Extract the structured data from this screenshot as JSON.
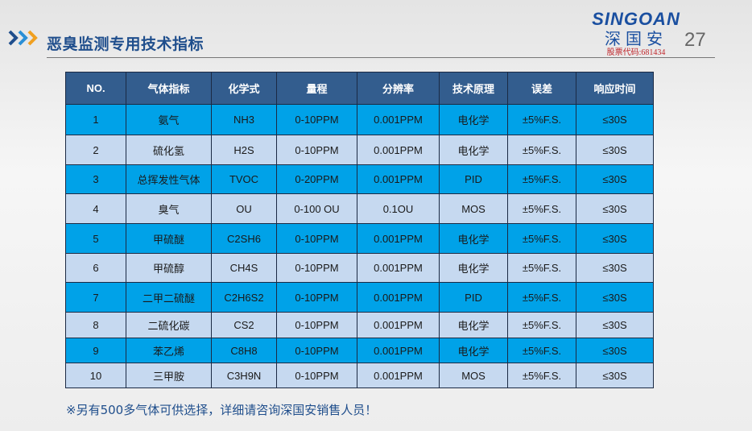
{
  "header": {
    "title": "恶臭监测专用技术指标",
    "page_number": "27"
  },
  "logo": {
    "en": "SINGOAN",
    "cn": "深国安",
    "stock_code": "股票代码:681434"
  },
  "table": {
    "columns": [
      "NO.",
      "气体指标",
      "化学式",
      "量程",
      "分辨率",
      "技术原理",
      "误差",
      "响应时间"
    ],
    "rows": [
      [
        "1",
        "氨气",
        "NH3",
        "0-10PPM",
        "0.001PPM",
        "电化学",
        "±5%F.S.",
        "≤30S"
      ],
      [
        "2",
        "硫化氢",
        "H2S",
        "0-10PPM",
        "0.001PPM",
        "电化学",
        "±5%F.S.",
        "≤30S"
      ],
      [
        "3",
        "总挥发性气体",
        "TVOC",
        "0-20PPM",
        "0.001PPM",
        "PID",
        "±5%F.S.",
        "≤30S"
      ],
      [
        "4",
        "臭气",
        "OU",
        "0-100 OU",
        "0.1OU",
        "MOS",
        "±5%F.S.",
        "≤30S"
      ],
      [
        "5",
        "甲硫醚",
        "C2SH6",
        "0-10PPM",
        "0.001PPM",
        "电化学",
        "±5%F.S.",
        "≤30S"
      ],
      [
        "6",
        "甲硫醇",
        "CH4S",
        "0-10PPM",
        "0.001PPM",
        "电化学",
        "±5%F.S.",
        "≤30S"
      ],
      [
        "7",
        "二甲二硫醚",
        "C2H6S2",
        "0-10PPM",
        "0.001PPM",
        "PID",
        "±5%F.S.",
        "≤30S"
      ],
      [
        "8",
        "二硫化碳",
        "CS2",
        "0-10PPM",
        "0.001PPM",
        "电化学",
        "±5%F.S.",
        "≤30S"
      ],
      [
        "9",
        "苯乙烯",
        "C8H8",
        "0-10PPM",
        "0.001PPM",
        "电化学",
        "±5%F.S.",
        "≤30S"
      ],
      [
        "10",
        "三甲胺",
        "C3H9N",
        "0-10PPM",
        "0.001PPM",
        "MOS",
        "±5%F.S.",
        "≤30S"
      ]
    ]
  },
  "footer_note": "※另有500多气体可供选择，详细请咨询深国安销售人员！",
  "colors": {
    "header": "#335d8e",
    "row_cyan": "#00a2e8",
    "row_light": "#c6d9f0",
    "title": "#1f4e8c"
  }
}
